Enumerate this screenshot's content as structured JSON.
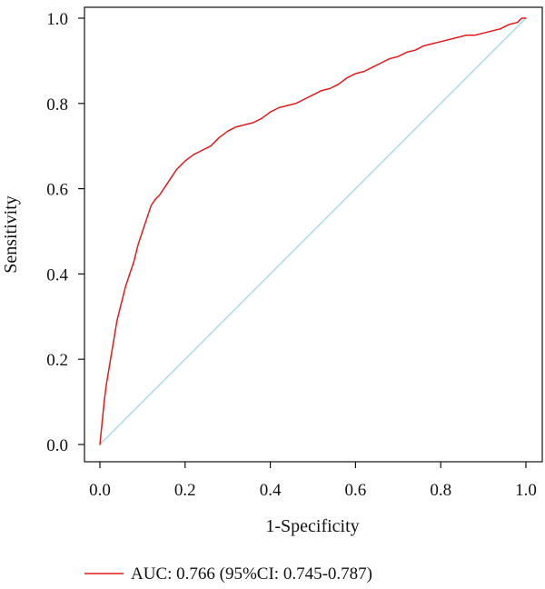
{
  "colors": {
    "roc_curve": "#e41a1c",
    "reference_line": "#a6d8ea",
    "axis": "#111111",
    "text": "#111111"
  },
  "chart_data": {
    "type": "line",
    "title": "",
    "xlabel": "1-Specificity",
    "ylabel": "Sensitivity",
    "xlim": [
      0.0,
      1.0
    ],
    "ylim": [
      0.0,
      1.0
    ],
    "xticks": [
      "0.0",
      "0.2",
      "0.4",
      "0.6",
      "0.8",
      "1.0"
    ],
    "yticks": [
      "0.0",
      "0.2",
      "0.4",
      "0.6",
      "0.8",
      "1.0"
    ],
    "grid": false,
    "legend": {
      "placement": "bottom-left",
      "entries": [
        {
          "label": "AUC: 0.766 (95%CI: 0.745-0.787)",
          "color": "#e41a1c"
        }
      ]
    },
    "series": [
      {
        "name": "AUC: 0.766 (95%CI: 0.745-0.787)",
        "color": "#e41a1c",
        "x": [
          0.0,
          0.005,
          0.01,
          0.015,
          0.02,
          0.03,
          0.04,
          0.05,
          0.06,
          0.07,
          0.08,
          0.09,
          0.1,
          0.11,
          0.12,
          0.13,
          0.14,
          0.15,
          0.16,
          0.17,
          0.18,
          0.19,
          0.2,
          0.22,
          0.24,
          0.26,
          0.28,
          0.3,
          0.32,
          0.34,
          0.36,
          0.38,
          0.4,
          0.42,
          0.44,
          0.46,
          0.48,
          0.5,
          0.52,
          0.54,
          0.56,
          0.58,
          0.6,
          0.62,
          0.64,
          0.66,
          0.68,
          0.7,
          0.72,
          0.74,
          0.76,
          0.78,
          0.8,
          0.82,
          0.84,
          0.86,
          0.88,
          0.9,
          0.92,
          0.94,
          0.96,
          0.98,
          0.99,
          1.0
        ],
        "y": [
          0.0,
          0.05,
          0.1,
          0.14,
          0.17,
          0.23,
          0.29,
          0.33,
          0.37,
          0.4,
          0.43,
          0.47,
          0.5,
          0.53,
          0.56,
          0.575,
          0.585,
          0.6,
          0.615,
          0.63,
          0.645,
          0.655,
          0.665,
          0.68,
          0.69,
          0.7,
          0.72,
          0.735,
          0.745,
          0.75,
          0.755,
          0.765,
          0.78,
          0.79,
          0.795,
          0.8,
          0.81,
          0.82,
          0.83,
          0.835,
          0.845,
          0.86,
          0.87,
          0.875,
          0.885,
          0.895,
          0.905,
          0.91,
          0.92,
          0.925,
          0.935,
          0.94,
          0.945,
          0.95,
          0.955,
          0.96,
          0.96,
          0.965,
          0.97,
          0.975,
          0.985,
          0.99,
          1.0,
          1.0
        ]
      },
      {
        "x": [
          0.0,
          1.0
        ],
        "y": [
          0.0,
          1.0
        ],
        "color": "#a6d8ea"
      }
    ]
  }
}
